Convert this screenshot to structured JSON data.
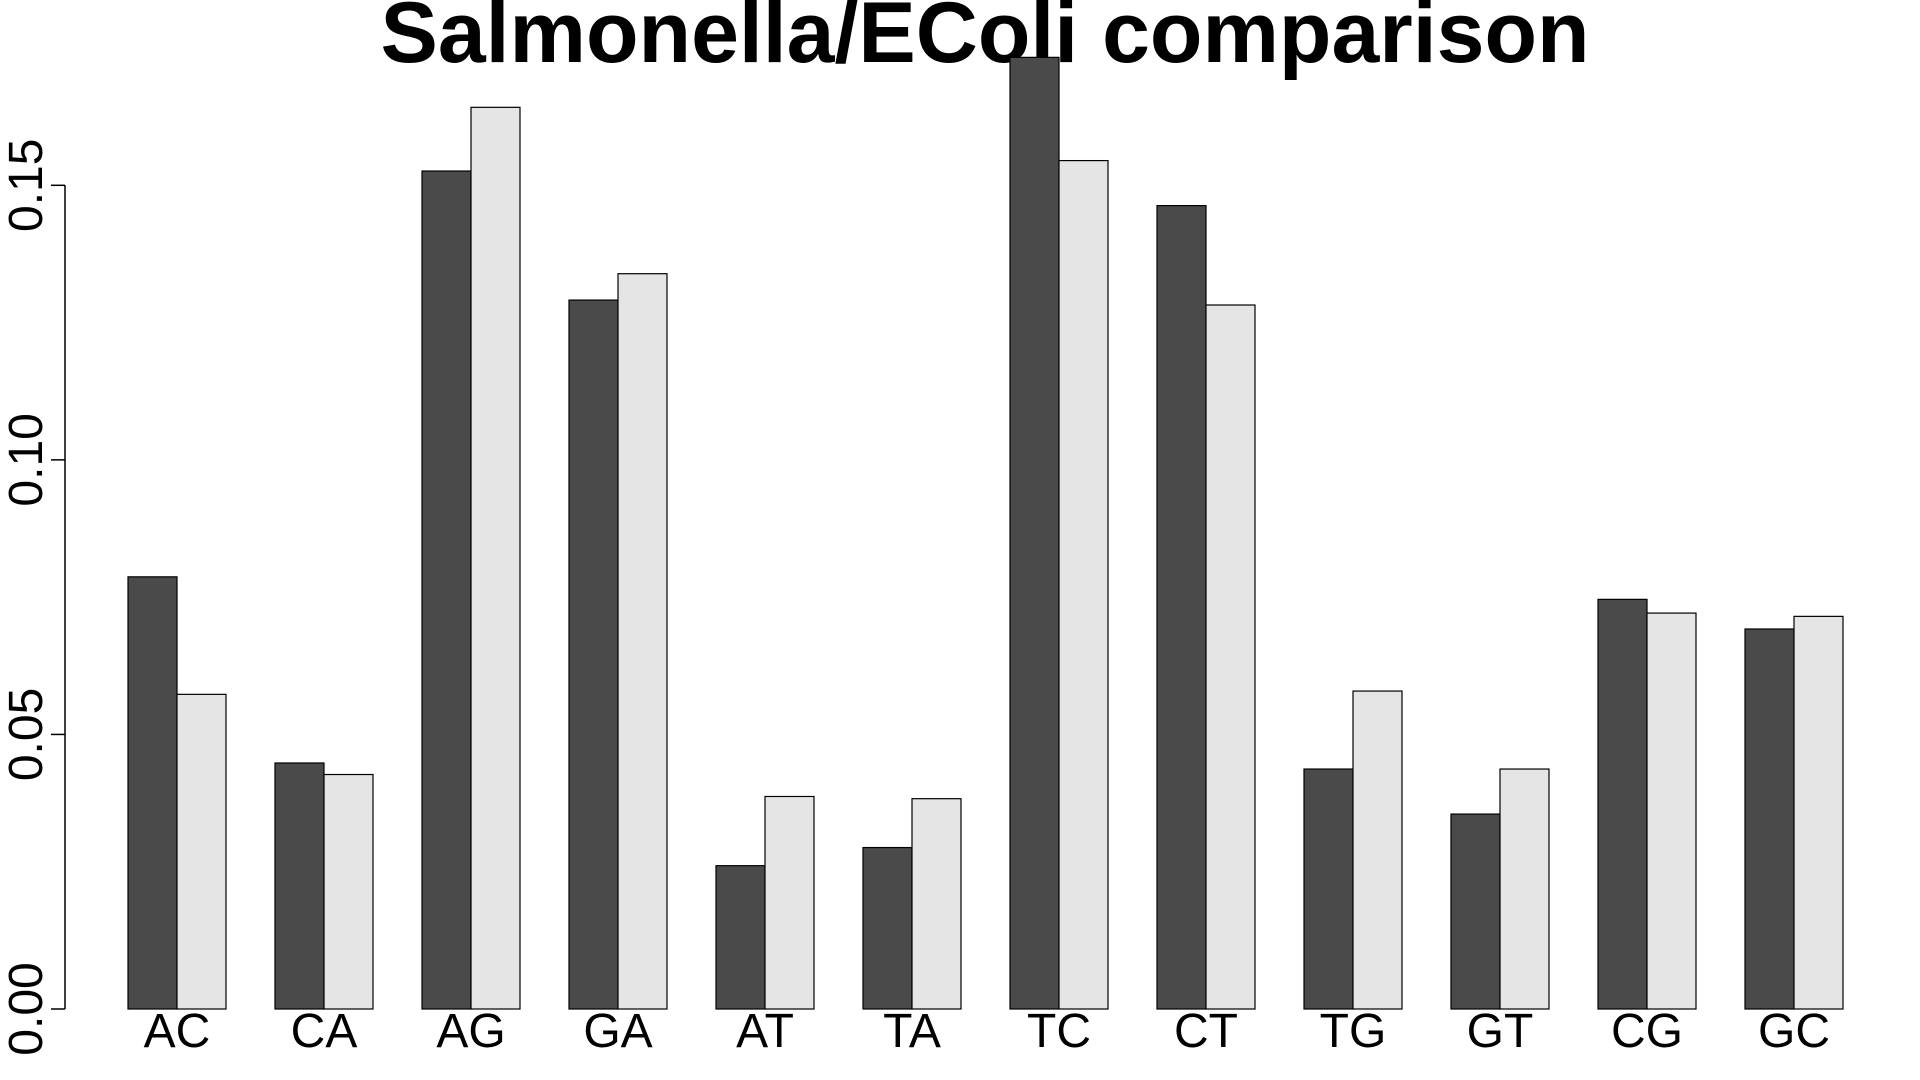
{
  "chart_data": {
    "type": "bar",
    "title": "Salmonella/EColi comparison",
    "xlabel": "",
    "ylabel": "",
    "ylim": [
      0,
      0.173
    ],
    "yticks": [
      0.0,
      0.05,
      0.1,
      0.15
    ],
    "ytick_labels": [
      "0.00",
      "0.05",
      "0.10",
      "0.15"
    ],
    "categories": [
      "AC",
      "CA",
      "AG",
      "GA",
      "AT",
      "TA",
      "TC",
      "CT",
      "TG",
      "GT",
      "CG",
      "GC"
    ],
    "series": [
      {
        "values": [
          0.0787,
          0.0448,
          0.1526,
          0.1291,
          0.0261,
          0.0294,
          0.1733,
          0.1463,
          0.0437,
          0.0355,
          0.0746,
          0.0692
        ],
        "color": "#4a4a4a"
      },
      {
        "values": [
          0.0573,
          0.0427,
          0.1642,
          0.1339,
          0.0387,
          0.0383,
          0.1545,
          0.1282,
          0.0579,
          0.0437,
          0.0721,
          0.0715
        ],
        "color": "#e5e5e5"
      }
    ],
    "grid": false,
    "legend": "none"
  }
}
